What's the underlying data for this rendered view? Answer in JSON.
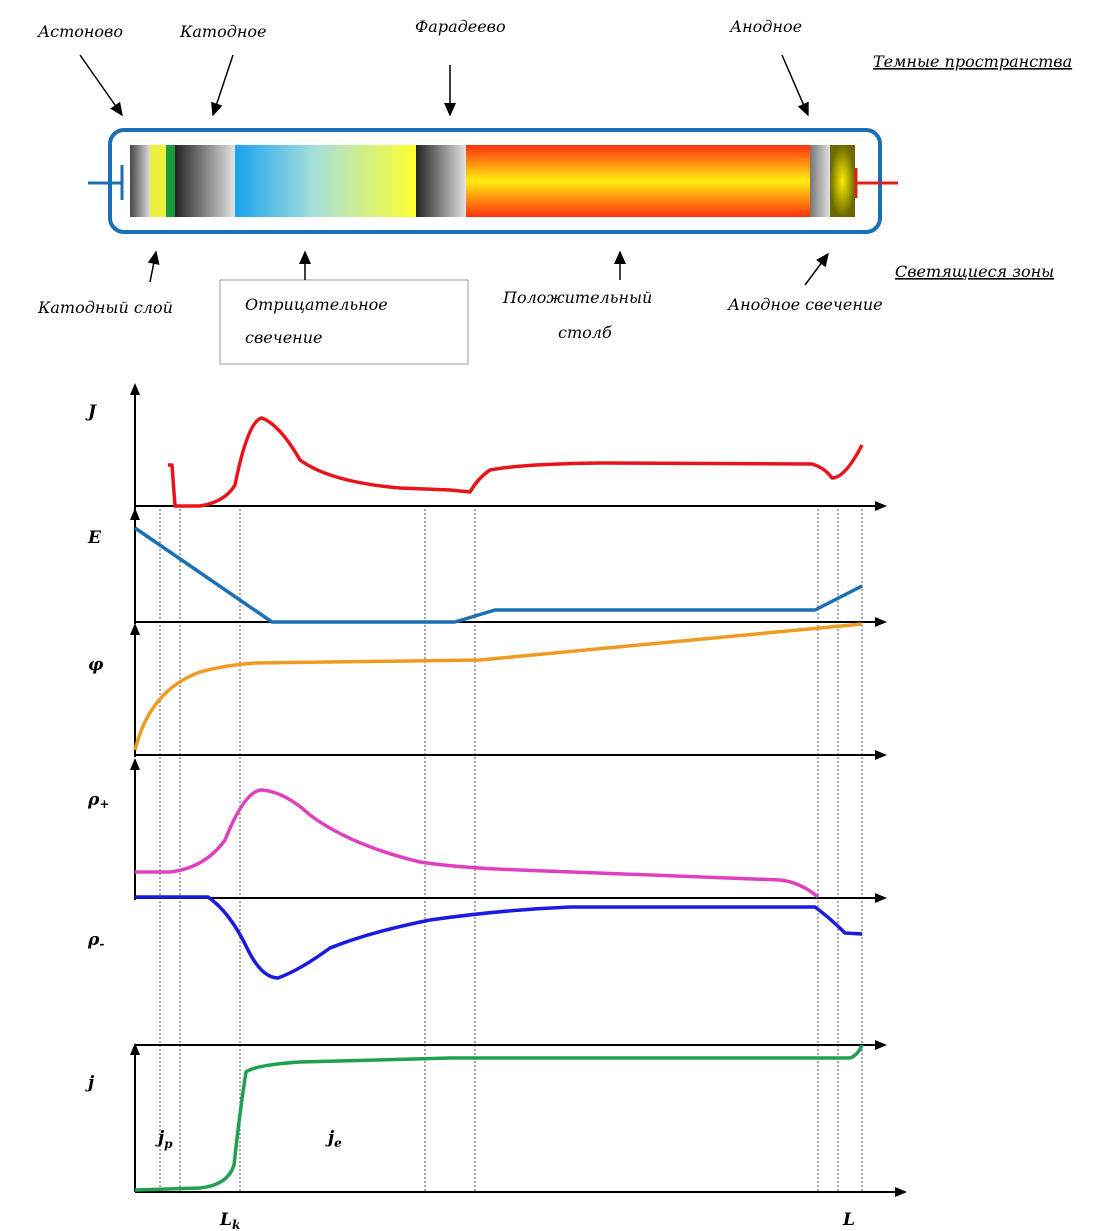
{
  "dark_spaces": {
    "title": "Темные пространства",
    "labels": [
      "Астоново",
      "Катодное",
      "Фарадеево",
      "Анодное"
    ]
  },
  "glowing_zones": {
    "title": "Светящиеся зоны",
    "labels": {
      "cathode_layer": "Катодный слой",
      "negative_glow": [
        "Отрицательное",
        "свечение"
      ],
      "positive_column": [
        "Положительный",
        "столб"
      ],
      "anode_glow": "Анодное свечение"
    }
  },
  "plots": [
    {
      "symbol": "J"
    },
    {
      "symbol": "E"
    },
    {
      "symbol": "φ"
    },
    {
      "symbol": "ρ",
      "sub": "+"
    },
    {
      "symbol": "ρ",
      "sub": "-"
    },
    {
      "symbol": "j"
    }
  ],
  "annotations": [
    {
      "symbol": "j",
      "sub": "p"
    },
    {
      "symbol": "j",
      "sub": "e"
    },
    {
      "symbol": "L",
      "sub": "k"
    },
    {
      "symbol": "L"
    }
  ]
}
